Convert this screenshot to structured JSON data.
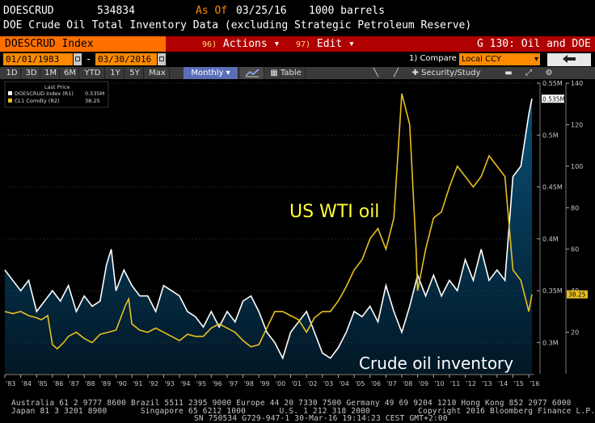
{
  "header": {
    "ticker": "DOESCRUD",
    "value": "534834",
    "as_of_label": "As Of",
    "as_of_date": "03/25/16",
    "unit": "1000 barrels",
    "description": "DOE Crude Oil Total Inventory Data (excluding Strategic Petroleum Reserve)"
  },
  "function_bar": {
    "security": "DOESCRUD Index",
    "actions_num": "96)",
    "actions_label": "Actions",
    "edit_num": "97)",
    "edit_label": "Edit",
    "graph_label": "G 130: Oil and DOE"
  },
  "date_row": {
    "start_date": "01/01/1983",
    "separator": "-",
    "end_date": "03/30/2016",
    "compare_label": "1) Compare",
    "currency": "Local CCY",
    "back_icon": "back-arrow-icon"
  },
  "toolbar": {
    "periods": [
      "1D",
      "3D",
      "1M",
      "6M",
      "YTD",
      "1Y",
      "5Y",
      "Max"
    ],
    "frequency": "Monthly",
    "chart_icon": "line-chart-icon",
    "table_label": "Table",
    "security_study_label": "Security/Study"
  },
  "legend": {
    "heading": "Last Price",
    "items": [
      {
        "name": "DOESCRUD Index (R1)",
        "value": "0.535M",
        "color": "#ffffff"
      },
      {
        "name": "CL1 Comdty  (R2)",
        "value": "38.25",
        "color": "#e8c020"
      }
    ]
  },
  "annotations": {
    "wti": "US WTI oil",
    "inventory": "Crude oil inventory"
  },
  "chart_data": {
    "type": "line",
    "x_tick_labels": [
      "'83",
      "'84",
      "'85",
      "'86",
      "'87",
      "'88",
      "'89",
      "'90",
      "'91",
      "'92",
      "'93",
      "'94",
      "'95",
      "'96",
      "'97",
      "'98",
      "'99",
      "'00",
      "'01",
      "'02",
      "'03",
      "'04",
      "'05",
      "'06",
      "'07",
      "'08",
      "'09",
      "'10",
      "'11",
      "'12",
      "'13",
      "'14",
      "'15",
      "'16"
    ],
    "x_range": [
      1983,
      2016.3
    ],
    "axis_r1": {
      "ticks": [
        "0.3M",
        "0.35M",
        "0.4M",
        "0.45M",
        "0.5M",
        "0.55M"
      ],
      "range": [
        0.27,
        0.55
      ],
      "last_label": "0.535M"
    },
    "axis_r2": {
      "ticks": [
        "20",
        "40",
        "60",
        "80",
        "100",
        "120",
        "140"
      ],
      "range": [
        0,
        140
      ],
      "last_label": "38.25"
    },
    "colors": {
      "inventory": "#ffffff",
      "wti": "#e8c020",
      "fill": "#0a4d70"
    },
    "series": [
      {
        "name": "DOESCRUD Index (R1)",
        "axis": "r1",
        "x": [
          1983,
          1983.5,
          1984,
          1984.5,
          1985,
          1985.5,
          1986,
          1986.5,
          1987,
          1987.5,
          1988,
          1988.5,
          1989,
          1989.4,
          1989.7,
          1990,
          1990.5,
          1991,
          1991.5,
          1992,
          1992.5,
          1993,
          1993.5,
          1994,
          1994.5,
          1995,
          1995.5,
          1996,
          1996.5,
          1997,
          1997.5,
          1998,
          1998.5,
          1999,
          1999.5,
          2000,
          2000.5,
          2001,
          2001.5,
          2002,
          2002.5,
          2003,
          2003.5,
          2004,
          2004.5,
          2005,
          2005.5,
          2006,
          2006.5,
          2007,
          2007.5,
          2008,
          2008.5,
          2009,
          2009.5,
          2010,
          2010.5,
          2011,
          2011.5,
          2012,
          2012.5,
          2013,
          2013.5,
          2014,
          2014.5,
          2015,
          2015.5,
          2016,
          2016.2
        ],
        "y": [
          0.37,
          0.36,
          0.35,
          0.36,
          0.33,
          0.34,
          0.35,
          0.34,
          0.355,
          0.33,
          0.345,
          0.335,
          0.34,
          0.375,
          0.39,
          0.35,
          0.37,
          0.355,
          0.345,
          0.345,
          0.33,
          0.355,
          0.35,
          0.345,
          0.33,
          0.325,
          0.315,
          0.33,
          0.315,
          0.33,
          0.32,
          0.34,
          0.345,
          0.33,
          0.31,
          0.3,
          0.285,
          0.31,
          0.32,
          0.33,
          0.31,
          0.29,
          0.285,
          0.295,
          0.31,
          0.33,
          0.325,
          0.335,
          0.32,
          0.355,
          0.33,
          0.31,
          0.335,
          0.365,
          0.345,
          0.365,
          0.345,
          0.36,
          0.35,
          0.38,
          0.36,
          0.39,
          0.36,
          0.37,
          0.36,
          0.46,
          0.47,
          0.52,
          0.535
        ]
      },
      {
        "name": "CL1 Comdty (R2)",
        "axis": "r2",
        "x": [
          1983,
          1983.5,
          1984,
          1984.5,
          1985,
          1985.3,
          1985.7,
          1986,
          1986.3,
          1986.7,
          1987,
          1987.5,
          1988,
          1988.5,
          1989,
          1989.5,
          1990,
          1990.6,
          1990.8,
          1991,
          1991.5,
          1992,
          1992.5,
          1993,
          1993.5,
          1994,
          1994.5,
          1995,
          1995.5,
          1996,
          1996.5,
          1997,
          1997.5,
          1998,
          1998.5,
          1999,
          1999.5,
          2000,
          2000.5,
          2001,
          2001.5,
          2002,
          2002.5,
          2003,
          2003.5,
          2004,
          2004.5,
          2005,
          2005.5,
          2006,
          2006.5,
          2007,
          2007.5,
          2008,
          2008.5,
          2008.9,
          2009,
          2009.5,
          2010,
          2010.5,
          2011,
          2011.5,
          2012,
          2012.5,
          2013,
          2013.5,
          2014,
          2014.5,
          2015,
          2015.5,
          2016,
          2016.2
        ],
        "y": [
          30,
          29,
          30,
          28,
          27,
          26,
          28,
          14,
          12,
          15,
          18,
          20,
          17,
          15,
          19,
          20,
          21,
          33,
          36,
          24,
          21,
          20,
          22,
          20,
          18,
          16,
          19,
          18,
          18,
          22,
          24,
          22,
          20,
          16,
          13,
          14,
          22,
          30,
          30,
          28,
          26,
          20,
          27,
          30,
          30,
          35,
          42,
          50,
          55,
          65,
          70,
          60,
          75,
          135,
          120,
          60,
          40,
          60,
          75,
          78,
          90,
          100,
          95,
          90,
          95,
          105,
          100,
          95,
          50,
          45,
          30,
          38.25
        ]
      }
    ]
  },
  "footer": {
    "line1": "Australia 61 2 9777 8600 Brazil 5511 2395 9000 Europe 44 20 7330 7500 Germany 49 69 9204 1210 Hong Kong 852 2977 6000",
    "line2": "Japan 81 3 3201 8900       Singapore 65 6212 1000       U.S. 1 212 318 2000          Copyright 2016 Bloomberg Finance L.P.",
    "line3": "SN 750534 G729-947-1 30-Mar-16 19:14:23 CEST GMT+2:00"
  }
}
